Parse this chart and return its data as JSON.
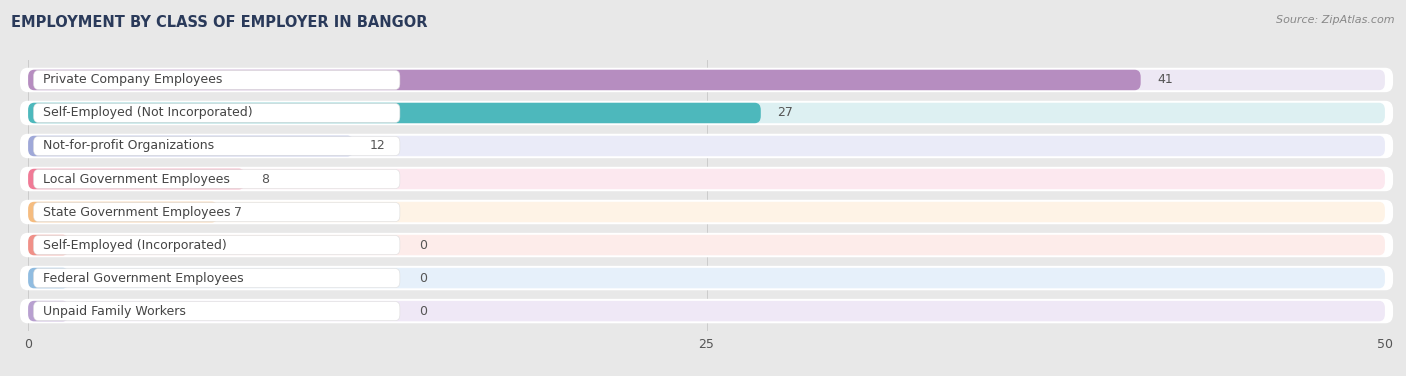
{
  "title": "EMPLOYMENT BY CLASS OF EMPLOYER IN BANGOR",
  "source": "Source: ZipAtlas.com",
  "categories": [
    "Private Company Employees",
    "Self-Employed (Not Incorporated)",
    "Not-for-profit Organizations",
    "Local Government Employees",
    "State Government Employees",
    "Self-Employed (Incorporated)",
    "Federal Government Employees",
    "Unpaid Family Workers"
  ],
  "values": [
    41,
    27,
    12,
    8,
    7,
    0,
    0,
    0
  ],
  "bar_colors": [
    "#b68dc0",
    "#4db8bc",
    "#9fa8d8",
    "#f07a96",
    "#f5bc80",
    "#f09088",
    "#90bce0",
    "#b8a0d0"
  ],
  "bar_bg_colors": [
    "#ede8f4",
    "#ddf0f2",
    "#eaebf8",
    "#fce8ef",
    "#fef3e6",
    "#fdecea",
    "#e6f0fa",
    "#efe8f6"
  ],
  "xlim_max": 50,
  "xticks": [
    0,
    25,
    50
  ],
  "figsize": [
    14.06,
    3.76
  ],
  "dpi": 100,
  "outer_bg": "#e8e8e8",
  "inner_bg": "#f5f5f5",
  "title_fontsize": 10.5,
  "label_fontsize": 9,
  "value_fontsize": 9,
  "title_color": "#2a3a5a",
  "source_color": "#888888",
  "label_color": "#444444",
  "value_color": "#555555"
}
